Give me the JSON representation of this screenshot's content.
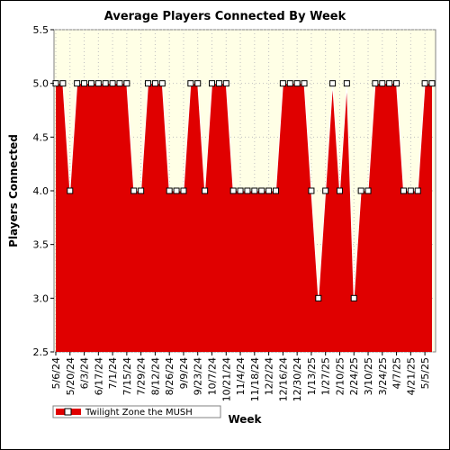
{
  "chart_data": {
    "type": "area",
    "title": "Average Players Connected By Week",
    "xlabel": "Week",
    "ylabel": "Players Connected",
    "ylim": [
      2.5,
      5.5
    ],
    "yticks": [
      "2.5",
      "3.0",
      "3.5",
      "4.0",
      "4.5",
      "5.0",
      "5.5"
    ],
    "ytick_values": [
      2.5,
      3.0,
      3.5,
      4.0,
      4.5,
      5.0,
      5.5
    ],
    "xtick_labels": [
      "5/6/24",
      "5/20/24",
      "6/3/24",
      "6/17/24",
      "7/1/24",
      "7/15/24",
      "7/29/24",
      "8/12/24",
      "8/26/24",
      "9/9/24",
      "9/23/24",
      "10/7/24",
      "10/21/24",
      "11/4/24",
      "11/18/24",
      "12/2/24",
      "12/16/24",
      "12/30/24",
      "1/13/25",
      "1/27/25",
      "2/10/25",
      "2/24/25",
      "3/10/25",
      "3/24/25",
      "4/7/25",
      "4/21/25",
      "5/5/25"
    ],
    "x_start": "5/6/24",
    "x_step_days": 7,
    "grid": true,
    "legend_position": "bottom-left",
    "colors": {
      "plot_background": "#ffffe6",
      "series_fill": "#e00000",
      "series_line": "#ffffff",
      "marker_fill": "#ffffff",
      "marker_stroke": "#000000",
      "grid": "#c0c0c0"
    },
    "series": [
      {
        "name": "Twilight Zone the MUSH",
        "values": [
          5,
          5,
          4,
          5,
          5,
          5,
          5,
          5,
          5,
          5,
          5,
          4,
          4,
          5,
          5,
          5,
          4,
          4,
          4,
          5,
          5,
          4,
          5,
          5,
          5,
          4,
          4,
          4,
          4,
          4,
          4,
          4,
          5,
          5,
          5,
          5,
          4,
          3,
          4,
          5,
          4,
          5,
          3,
          4,
          4,
          5,
          5,
          5,
          5,
          4,
          4,
          4,
          5,
          5
        ]
      }
    ]
  }
}
